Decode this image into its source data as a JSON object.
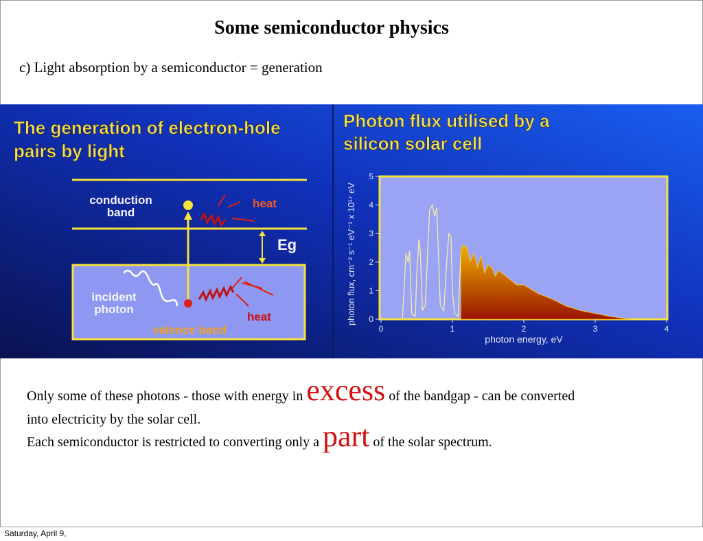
{
  "header": {
    "title": "Some semiconductor physics",
    "subtitle": "c) Light absorption by a semiconductor = generation"
  },
  "left_panel": {
    "title_lines": [
      "The generation of electron-hole",
      "pairs by light"
    ],
    "labels": {
      "conduction": "conduction",
      "band": "band",
      "heat_top": "heat",
      "eg": "Eg",
      "incident": "incident",
      "photon": "photon",
      "heat_bottom": "heat",
      "valence": "valence band"
    }
  },
  "chart_data": {
    "type": "area",
    "title_lines": [
      "Photon flux utilised by a",
      "silicon solar cell"
    ],
    "x_label": "photon energy, eV",
    "y_label": "photon flux, cm⁻² s⁻¹ eV⁻¹ x 10¹⁷ eV",
    "x": [
      0.3,
      0.35,
      0.38,
      0.4,
      0.43,
      0.48,
      0.5,
      0.53,
      0.55,
      0.58,
      0.62,
      0.68,
      0.72,
      0.75,
      0.78,
      0.8,
      0.83,
      0.88,
      0.92,
      0.95,
      0.98,
      1.0,
      1.03,
      1.08,
      1.12,
      1.15,
      1.2,
      1.25,
      1.3,
      1.35,
      1.4,
      1.45,
      1.5,
      1.55,
      1.6,
      1.65,
      1.7,
      1.8,
      1.9,
      2.0,
      2.2,
      2.4,
      2.6,
      2.8,
      3.0,
      3.2,
      3.4,
      3.5
    ],
    "series": [
      {
        "color": "#f6eea0",
        "values": [
          0,
          2.3,
          2.0,
          2.4,
          0.2,
          0.1,
          1.5,
          2.8,
          2.4,
          0.3,
          0.5,
          3.8,
          4.0,
          3.6,
          3.9,
          2.6,
          0.5,
          0.3,
          2.0,
          3.0,
          2.9,
          1.0,
          0.2,
          0.1,
          2.4,
          2.6,
          2.5,
          2.0,
          2.3,
          1.8,
          2.2,
          1.6,
          1.9,
          1.8,
          1.5,
          1.7,
          1.6,
          1.4,
          1.2,
          1.2,
          0.9,
          0.7,
          0.45,
          0.3,
          0.2,
          0.1,
          0.03,
          0
        ]
      },
      {
        "color": "#9a1400",
        "values": [
          null,
          null,
          null,
          null,
          null,
          null,
          null,
          null,
          null,
          null,
          null,
          null,
          null,
          null,
          null,
          null,
          null,
          null,
          null,
          null,
          null,
          null,
          null,
          null,
          2.4,
          2.6,
          2.5,
          2.0,
          2.3,
          1.8,
          2.2,
          1.6,
          1.9,
          1.8,
          1.5,
          1.7,
          1.6,
          1.4,
          1.2,
          1.2,
          0.9,
          0.7,
          0.45,
          0.3,
          0.2,
          0.1,
          0.03,
          0
        ]
      }
    ],
    "xlim": [
      0,
      4
    ],
    "ylim": [
      0,
      5
    ],
    "xticks": [
      0,
      1,
      2,
      3,
      4
    ],
    "yticks": [
      0,
      1,
      2,
      3,
      4,
      5
    ]
  },
  "body": {
    "line1": [
      "Only some of these photons - those with energy in ",
      "excess",
      " of the bandgap - can be converted"
    ],
    "line2": "into electricity by the solar cell.",
    "line3": [
      "Each semiconductor is restricted to converting only a ",
      "part",
      " of the solar spectrum."
    ]
  },
  "footer": {
    "date": "Saturday, April 9,"
  }
}
